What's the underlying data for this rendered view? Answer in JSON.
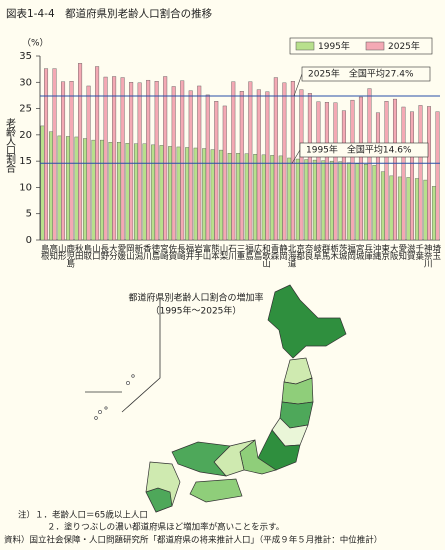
{
  "chart_data": {
    "type": "bar",
    "title": "図表1-4-4　都道府県別老齢人口割合の推移",
    "y_unit": "（%）",
    "y_label": "老齢人口割合",
    "categories": [
      "島根",
      "高知",
      "山形",
      "鹿児島",
      "秋田",
      "鳥取",
      "山口",
      "長野",
      "大分",
      "愛媛",
      "岡山",
      "新潟",
      "香川",
      "徳島",
      "宮崎",
      "佐賀",
      "長崎",
      "福井",
      "岩手",
      "富山",
      "熊本",
      "山梨",
      "石川",
      "三重",
      "福島",
      "広島",
      "和歌山",
      "青森",
      "静岡",
      "北海道",
      "京都",
      "奈良",
      "岐阜",
      "群馬",
      "栃木",
      "茨城",
      "福岡",
      "宮城",
      "兵庫",
      "沖縄",
      "東京",
      "大阪",
      "愛知",
      "滋賀",
      "千葉",
      "神奈川",
      "埼玉"
    ],
    "series": [
      {
        "name": "1995年",
        "color": "#b8e08c",
        "values": [
          21.7,
          20.6,
          19.8,
          19.7,
          19.6,
          19.3,
          19.0,
          19.0,
          18.6,
          18.6,
          18.4,
          18.3,
          18.3,
          18.1,
          18.0,
          17.8,
          17.7,
          17.6,
          17.5,
          17.4,
          17.2,
          17.1,
          16.5,
          16.5,
          16.4,
          16.3,
          16.2,
          16.1,
          16.0,
          15.6,
          15.4,
          15.3,
          15.2,
          15.1,
          15.0,
          14.9,
          14.7,
          14.5,
          14.4,
          14.2,
          13.0,
          12.2,
          12.0,
          11.9,
          11.7,
          11.4,
          10.2
        ]
      },
      {
        "name": "2025年",
        "color": "#f4a9b4",
        "values": [
          32.6,
          32.6,
          30.1,
          30.2,
          33.6,
          29.3,
          33.0,
          31.0,
          31.1,
          30.9,
          30.0,
          29.9,
          30.4,
          30.2,
          31.1,
          29.2,
          30.3,
          28.4,
          29.3,
          27.6,
          26.4,
          25.5,
          30.1,
          28.3,
          30.1,
          28.6,
          28.2,
          30.9,
          29.9,
          30.2,
          28.6,
          27.9,
          26.3,
          26.2,
          26.1,
          24.6,
          26.6,
          27.2,
          28.8,
          24.2,
          26.4,
          26.8,
          25.3,
          24.4,
          25.6,
          25.4,
          24.4
        ]
      }
    ],
    "reference_lines": [
      {
        "value": 27.4,
        "label": "2025年　全国平均27.4%",
        "color": "#2a4fa8"
      },
      {
        "value": 14.6,
        "label": "1995年　全国平均14.6%",
        "color": "#2a4fa8"
      }
    ],
    "ylim": [
      0,
      35
    ],
    "yticks": [
      0,
      5,
      10,
      15,
      20,
      25,
      30,
      35
    ],
    "grid": false,
    "legend": "top-right"
  },
  "map": {
    "title": "都道府県別老齢人口割合の増加率",
    "subtitle": "（1995年～2025年）"
  },
  "notes": [
    "注）１．老齢人口＝65歳以上人口",
    "２．塗りつぶしの濃い都道府県ほど増加率が高いことを示す。",
    "資料）国立社会保障・人口問題研究所「都道府県の将来推計人口」（平成９年５月推計：中位推計）"
  ]
}
